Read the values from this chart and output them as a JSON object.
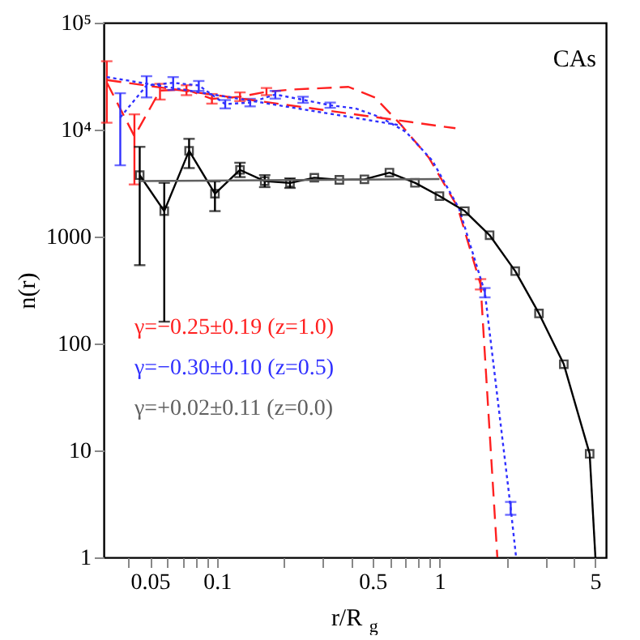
{
  "chart_data": {
    "type": "line",
    "xlabel": "r/R$_{g}$",
    "ylabel": "n(r)",
    "log": "xy",
    "grid": false,
    "legend": "left",
    "xlim": [
      0.031,
      5.6
    ],
    "ylim": [
      1,
      100000
    ],
    "xticks": [
      {
        "value": 0.04,
        "label": null
      },
      0.05,
      {
        "value": 0.06,
        "label": null
      },
      {
        "value": 0.07,
        "label": null
      },
      {
        "value": 0.08,
        "label": null
      },
      {
        "value": 0.09,
        "label": null
      },
      0.1,
      {
        "value": 0.2,
        "label": null
      },
      {
        "value": 0.3,
        "label": null
      },
      {
        "value": 0.4,
        "label": null
      },
      0.5,
      {
        "value": 0.6,
        "label": null
      },
      {
        "value": 0.7,
        "label": null
      },
      {
        "value": 0.8,
        "label": null
      },
      {
        "value": 0.9,
        "label": null
      },
      1,
      {
        "value": 2,
        "label": null
      },
      {
        "value": 3,
        "label": null
      },
      {
        "value": 4,
        "label": null
      },
      5
    ],
    "yticks": [
      1,
      10,
      100,
      1000,
      {
        "value": 10000,
        "label": "10⁴"
      },
      {
        "value": 100000,
        "label": "10⁵"
      }
    ],
    "annotations": [
      "CAs"
    ],
    "series": [
      {
        "color": "#ff2020",
        "marker": "none",
        "line_style": "dashed",
        "x": [
          0.032,
          0.0426,
          0.0555,
          0.073,
          0.095,
          0.127,
          0.167,
          0.218,
          0.293,
          0.39,
          0.514,
          0.669,
          0.895,
          1.205,
          1.53,
          1.82
        ],
        "values": [
          27600,
          8680,
          23200,
          23700,
          19400,
          20300,
          22600,
          23700,
          24400,
          25100,
          19900,
          11200,
          5480,
          1900,
          357,
          1
        ],
        "errors": [
          [
            11600,
            43600
          ],
          [
            3070,
            13900
          ],
          [
            19100,
            26800
          ],
          [
            21000,
            26000
          ],
          [
            17500,
            21500
          ],
          [
            18500,
            22300
          ],
          [
            21000,
            24500
          ],
          null,
          null,
          null,
          null,
          null,
          null,
          null,
          [
            320,
            400
          ],
          null
        ]
      },
      {
        "color": "#3030ff",
        "marker": "none",
        "line_style": "dotted",
        "x": [
          0.0368,
          0.0483,
          0.0636,
          0.0829,
          0.109,
          0.141,
          0.183,
          0.244,
          0.323,
          0.419,
          0.545,
          0.707,
          0.93,
          1.225,
          1.6,
          2.09,
          2.21
        ],
        "values": [
          13000,
          25900,
          27400,
          25900,
          17300,
          17900,
          21300,
          19000,
          16900,
          15800,
          13000,
          9530,
          5110,
          1830,
          300,
          2.88,
          1
        ],
        "errors": [
          [
            4640,
            21900
          ],
          [
            20000,
            31600
          ],
          [
            23500,
            31000
          ],
          [
            23000,
            28500
          ],
          [
            15800,
            18900
          ],
          [
            16500,
            19400
          ],
          [
            19500,
            23000
          ],
          [
            17800,
            20300
          ],
          [
            16000,
            17900
          ],
          null,
          null,
          null,
          null,
          null,
          [
            270,
            330
          ],
          [
            2.5,
            3.3
          ],
          null
        ]
      },
      {
        "color": "#000000",
        "marker": "square",
        "line_style": "solid",
        "x": [
          0.045,
          0.058,
          0.075,
          0.098,
          0.127,
          0.164,
          0.213,
          0.274,
          0.355,
          0.46,
          0.596,
          0.776,
          1.0,
          1.3,
          1.68,
          2.19,
          2.8,
          3.62,
          4.73
        ],
        "values": [
          3750,
          1730,
          6340,
          2520,
          4200,
          3300,
          3170,
          3550,
          3390,
          3430,
          3960,
          3180,
          2390,
          1730,
          1030,
          475,
          191,
          64,
          9.3
        ],
        "errors": [
          [
            540,
            6900
          ],
          [
            160,
            3180
          ],
          [
            4370,
            8200
          ],
          [
            1730,
            3280
          ],
          [
            3600,
            4900
          ],
          [
            2900,
            3750
          ],
          [
            2850,
            3500
          ],
          null,
          null,
          null,
          null,
          null,
          null,
          null,
          null,
          null,
          null,
          null,
          null
        ]
      },
      {
        "color": "#000000",
        "marker": "none",
        "line_style": "solid",
        "x": [
          4.73,
          5.02
        ],
        "values": [
          9.3,
          1
        ]
      },
      {
        "name": "γ=−0.25±0.19 (z=1.0)",
        "color": "#ff2020",
        "marker": "none",
        "line_style": "dashed",
        "x": [
          0.032,
          1.18
        ],
        "values": [
          29100,
          10300
        ]
      },
      {
        "name": "γ=−0.30±0.10 (z=0.5)",
        "color": "#3030ff",
        "marker": "none",
        "line_style": "dotted",
        "x": [
          0.032,
          0.68
        ],
        "values": [
          31000,
          10900
        ]
      },
      {
        "name": "γ=+0.02±0.11 (z=0.0)",
        "color": "#606060",
        "marker": "none",
        "line_style": "solid",
        "x": [
          0.045,
          1.0
        ],
        "values": [
          3300,
          3450
        ]
      }
    ]
  }
}
